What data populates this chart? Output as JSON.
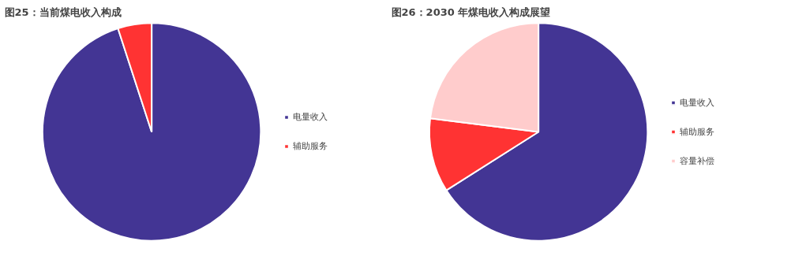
{
  "chart_data": [
    {
      "type": "pie",
      "title": "图25：当前煤电收入构成",
      "categories": [
        "电量收入",
        "辅助服务"
      ],
      "values": [
        95,
        5
      ],
      "colors": [
        "#433594",
        "#ff3333"
      ],
      "legend": "right"
    },
    {
      "type": "pie",
      "title": "图26：2030 年煤电收入构成展望",
      "categories": [
        "电量收入",
        "辅助服务",
        "容量补偿"
      ],
      "values": [
        66,
        11,
        23
      ],
      "colors": [
        "#433594",
        "#ff3333",
        "#ffcccc"
      ],
      "legend": "right"
    }
  ]
}
